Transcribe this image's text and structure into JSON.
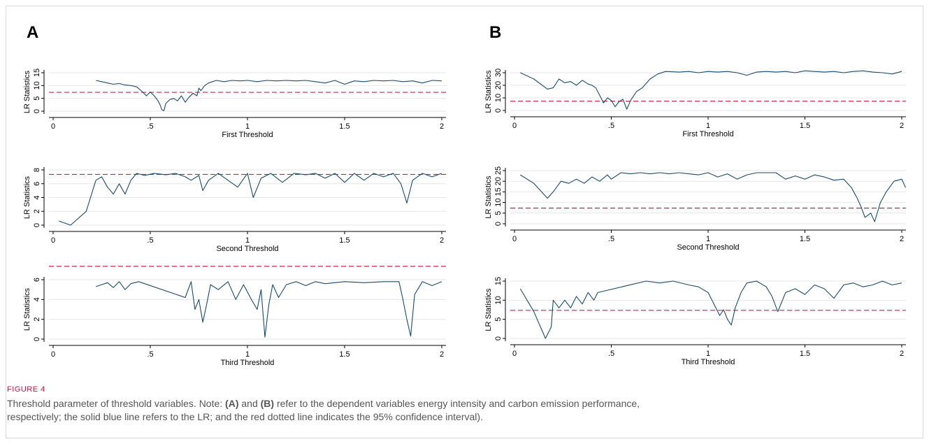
{
  "figure": {
    "panels": [
      {
        "letter": "A"
      },
      {
        "letter": "B"
      }
    ],
    "caption_label": "FIGURE 4",
    "caption": {
      "t1": "Threshold parameter of threshold variables. Note: ",
      "a": "(A)",
      "t2": " and ",
      "b": "(B)",
      "t3": " refer to the dependent variables energy intensity and carbon emission performance,",
      "t4": "respectively; the solid blue line refers to the LR; and the red dotted line indicates the 95% confidence interval)."
    },
    "colors": {
      "lr_line": "#1a4a6b",
      "critical_line": "#c8234a",
      "grid": "#e6e6e6"
    }
  },
  "chart_data": [
    {
      "type": "line",
      "panel": "A",
      "xlabel": "First Threshold",
      "ylabel": "LR Statistics",
      "xlim": [
        0,
        2
      ],
      "ylim": [
        0,
        15
      ],
      "yticks": [
        0,
        5,
        10,
        15
      ],
      "xticks": [
        0,
        0.5,
        1,
        1.5,
        2
      ],
      "xtick_labels": [
        "0",
        ".5",
        "1",
        "1.5",
        "2"
      ],
      "critical_value": 7.35,
      "grid": true,
      "legend": "none",
      "x": [
        0.22,
        0.25,
        0.28,
        0.31,
        0.34,
        0.37,
        0.4,
        0.43,
        0.46,
        0.48,
        0.5,
        0.52,
        0.54,
        0.55,
        0.56,
        0.57,
        0.58,
        0.6,
        0.62,
        0.64,
        0.66,
        0.68,
        0.7,
        0.72,
        0.74,
        0.75,
        0.76,
        0.78,
        0.8,
        0.84,
        0.88,
        0.92,
        0.96,
        1.0,
        1.05,
        1.1,
        1.15,
        1.2,
        1.25,
        1.3,
        1.35,
        1.4,
        1.45,
        1.5,
        1.55,
        1.6,
        1.65,
        1.7,
        1.75,
        1.8,
        1.85,
        1.9,
        1.95,
        2.0
      ],
      "y": [
        12,
        11.5,
        11,
        10.5,
        10.8,
        10.2,
        10,
        9.5,
        7.5,
        6,
        7.5,
        6,
        4,
        2.5,
        0.5,
        0.2,
        3,
        4.5,
        5,
        4,
        6,
        3.5,
        5.5,
        7,
        6,
        9,
        8,
        10,
        11,
        12,
        11.5,
        12,
        11.8,
        12,
        11.5,
        12,
        11.8,
        12,
        11.8,
        12,
        11.5,
        11,
        12,
        10.5,
        11.8,
        11.5,
        12,
        11.8,
        12,
        11.5,
        11.8,
        11,
        12,
        11.8
      ]
    },
    {
      "type": "line",
      "panel": "A",
      "xlabel": "Second Threshold",
      "ylabel": "LR Statistics",
      "xlim": [
        0,
        2
      ],
      "ylim": [
        0,
        8
      ],
      "yticks": [
        0,
        2,
        4,
        6,
        8
      ],
      "xticks": [
        0,
        0.5,
        1,
        1.5,
        2
      ],
      "xtick_labels": [
        "0",
        ".5",
        "1",
        "1.5",
        "2"
      ],
      "critical_value": 7.35,
      "grid": true,
      "legend": "none",
      "x": [
        0.03,
        0.09,
        0.17,
        0.22,
        0.25,
        0.28,
        0.31,
        0.34,
        0.37,
        0.4,
        0.43,
        0.47,
        0.52,
        0.58,
        0.63,
        0.68,
        0.71,
        0.75,
        0.77,
        0.8,
        0.85,
        0.9,
        0.95,
        1.0,
        1.03,
        1.07,
        1.12,
        1.18,
        1.24,
        1.3,
        1.35,
        1.4,
        1.45,
        1.5,
        1.55,
        1.6,
        1.65,
        1.7,
        1.75,
        1.79,
        1.82,
        1.85,
        1.9,
        1.95,
        2.0
      ],
      "y": [
        0.6,
        0,
        2,
        6.5,
        7,
        5.5,
        4.5,
        6,
        4.5,
        6.5,
        7.5,
        7.2,
        7.5,
        7.3,
        7.5,
        7,
        6.5,
        7.2,
        5,
        6.5,
        7.5,
        6.5,
        5.5,
        7.5,
        4,
        6.8,
        7.5,
        6.2,
        7.5,
        7.3,
        7.5,
        6.8,
        7.5,
        6.2,
        7.5,
        6.5,
        7.5,
        7,
        7.5,
        6,
        3.2,
        6.5,
        7.5,
        7,
        7.5
      ]
    },
    {
      "type": "line",
      "panel": "A",
      "xlabel": "Third Threshold",
      "ylabel": "LR Statistics",
      "xlim": [
        0,
        2
      ],
      "ylim": [
        0,
        6
      ],
      "yticks": [
        0,
        2,
        4,
        6
      ],
      "xticks": [
        0,
        0.5,
        1,
        1.5,
        2
      ],
      "xtick_labels": [
        "0",
        ".5",
        "1",
        "1.5",
        "2"
      ],
      "critical_value": 7.35,
      "grid": true,
      "legend": "none",
      "x": [
        0.22,
        0.25,
        0.28,
        0.31,
        0.34,
        0.37,
        0.4,
        0.44,
        0.68,
        0.71,
        0.73,
        0.75,
        0.77,
        0.79,
        0.81,
        0.85,
        0.9,
        0.94,
        0.98,
        1.02,
        1.05,
        1.07,
        1.09,
        1.11,
        1.13,
        1.16,
        1.2,
        1.25,
        1.3,
        1.35,
        1.4,
        1.5,
        1.6,
        1.7,
        1.78,
        1.8,
        1.82,
        1.84,
        1.86,
        1.9,
        1.95,
        2.0
      ],
      "y": [
        5.3,
        5.5,
        5.7,
        5.2,
        5.8,
        5,
        5.6,
        5.8,
        4.2,
        5.8,
        3,
        4,
        1.7,
        3.5,
        5.5,
        5,
        5.8,
        4,
        5.5,
        4,
        3,
        5,
        0.2,
        3.5,
        5.5,
        4.2,
        5.5,
        5.8,
        5.4,
        5.8,
        5.6,
        5.8,
        5.7,
        5.8,
        5.8,
        4,
        2,
        0.3,
        4.5,
        5.8,
        5.4,
        5.8
      ]
    },
    {
      "type": "line",
      "panel": "B",
      "xlabel": "First Threshold",
      "ylabel": "LR Statistics",
      "xlim": [
        0,
        2
      ],
      "ylim": [
        0,
        30
      ],
      "yticks": [
        0,
        10,
        20,
        30
      ],
      "xticks": [
        0,
        0.5,
        1,
        1.5,
        2
      ],
      "xtick_labels": [
        "0",
        ".5",
        "1",
        "1.5",
        "2"
      ],
      "critical_value": 7.35,
      "grid": true,
      "legend": "none",
      "x": [
        0.03,
        0.1,
        0.17,
        0.2,
        0.23,
        0.26,
        0.29,
        0.32,
        0.35,
        0.38,
        0.4,
        0.42,
        0.44,
        0.46,
        0.48,
        0.5,
        0.52,
        0.54,
        0.56,
        0.58,
        0.6,
        0.63,
        0.66,
        0.7,
        0.74,
        0.78,
        0.85,
        0.9,
        0.95,
        1.0,
        1.05,
        1.1,
        1.15,
        1.2,
        1.25,
        1.3,
        1.35,
        1.4,
        1.45,
        1.5,
        1.55,
        1.6,
        1.65,
        1.7,
        1.75,
        1.8,
        1.85,
        1.9,
        1.95,
        2.0
      ],
      "y": [
        30,
        25,
        17,
        18,
        25,
        22,
        23,
        20,
        24,
        21,
        20,
        18,
        12,
        6,
        10,
        8,
        3,
        7,
        9,
        1,
        8,
        15,
        18,
        25,
        29,
        31,
        30.5,
        31,
        30,
        31,
        30.5,
        31,
        30,
        28,
        30.5,
        31,
        30.5,
        31,
        30,
        31.5,
        31,
        30.5,
        31,
        30,
        31,
        31.5,
        30.5,
        30,
        29,
        31
      ]
    },
    {
      "type": "line",
      "panel": "B",
      "xlabel": "Second Threshold",
      "ylabel": "LR Statistics",
      "xlim": [
        0,
        2
      ],
      "ylim": [
        0,
        25
      ],
      "yticks": [
        0,
        5,
        10,
        15,
        20,
        25
      ],
      "xticks": [
        0,
        0.5,
        1,
        1.5,
        2
      ],
      "xtick_labels": [
        "0",
        ".5",
        "1",
        "1.5",
        "2"
      ],
      "critical_value": 7.35,
      "grid": true,
      "legend": "none",
      "x": [
        0.03,
        0.1,
        0.17,
        0.2,
        0.24,
        0.28,
        0.32,
        0.36,
        0.4,
        0.44,
        0.48,
        0.5,
        0.55,
        0.6,
        0.65,
        0.7,
        0.75,
        0.8,
        0.85,
        0.9,
        0.95,
        1.0,
        1.05,
        1.1,
        1.15,
        1.2,
        1.25,
        1.3,
        1.35,
        1.4,
        1.45,
        1.5,
        1.55,
        1.6,
        1.65,
        1.7,
        1.74,
        1.77,
        1.79,
        1.81,
        1.84,
        1.86,
        1.89,
        1.92,
        1.96,
        2.0,
        2.02
      ],
      "y": [
        23,
        19,
        12,
        15,
        20,
        19,
        21,
        19,
        22,
        20,
        23,
        21,
        24,
        23.5,
        24,
        23.5,
        24,
        23.5,
        24,
        23.5,
        23,
        24,
        22,
        23.5,
        21,
        23,
        24,
        24,
        24,
        21,
        22.5,
        21,
        23,
        22,
        20.5,
        21,
        17,
        12,
        8,
        3,
        5,
        1,
        10,
        15,
        20,
        21,
        17
      ]
    },
    {
      "type": "line",
      "panel": "B",
      "xlabel": "Third Threshold",
      "ylabel": "LR Statistics",
      "xlim": [
        0,
        2
      ],
      "ylim": [
        0,
        15
      ],
      "yticks": [
        0,
        5,
        10,
        15
      ],
      "xticks": [
        0,
        0.5,
        1,
        1.5,
        2
      ],
      "xtick_labels": [
        "0",
        ".5",
        "1",
        "1.5",
        "2"
      ],
      "critical_value": 7.35,
      "grid": true,
      "legend": "none",
      "x": [
        0.03,
        0.1,
        0.16,
        0.19,
        0.2,
        0.23,
        0.26,
        0.29,
        0.32,
        0.35,
        0.38,
        0.41,
        0.43,
        0.68,
        0.75,
        0.82,
        0.9,
        0.95,
        1.0,
        1.03,
        1.06,
        1.08,
        1.1,
        1.12,
        1.14,
        1.17,
        1.2,
        1.25,
        1.3,
        1.33,
        1.36,
        1.4,
        1.45,
        1.5,
        1.55,
        1.6,
        1.65,
        1.7,
        1.75,
        1.8,
        1.85,
        1.9,
        1.95,
        2.0
      ],
      "y": [
        13,
        7,
        0,
        3,
        10,
        8,
        10,
        8,
        11,
        9,
        12,
        10,
        12,
        15,
        14.5,
        15,
        14,
        13.5,
        12,
        9,
        6,
        7.5,
        5,
        3.5,
        8,
        12,
        14.5,
        15,
        13.5,
        11,
        7,
        12,
        13,
        11.5,
        14,
        13,
        10.5,
        14,
        14.5,
        13.5,
        14,
        15,
        14,
        14.5
      ]
    }
  ]
}
